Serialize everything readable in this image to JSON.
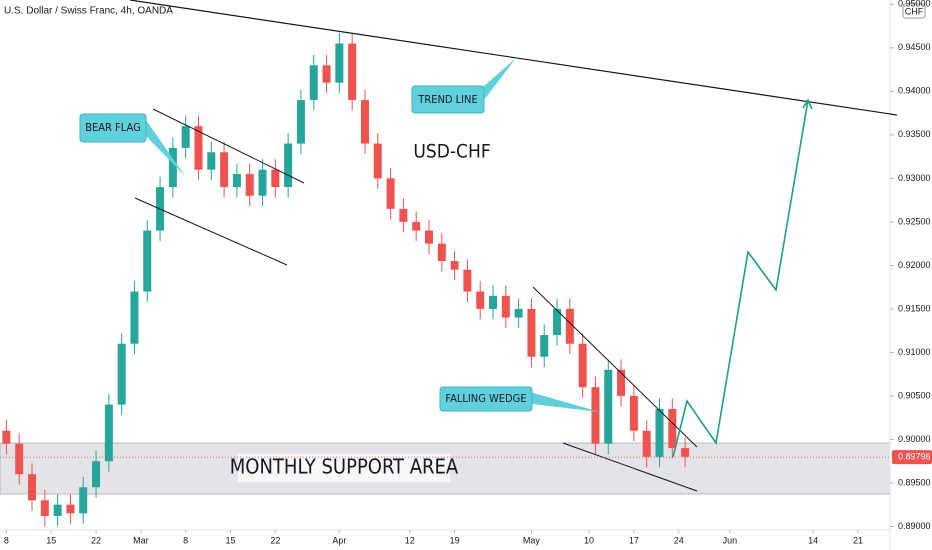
{
  "chart_data": {
    "type": "candlestick",
    "title": "U.S. Dollar / Swiss Franc, 4h, OANDA",
    "currency": "CHF",
    "annotations": [
      "USD-CHF",
      "MONTHLY SUPPORT AREA",
      "BEAR FLAG",
      "TREND LINE",
      "FALLING WEDGE"
    ],
    "colors": {
      "up": "#26a69a",
      "down": "#ef5350"
    },
    "last_price": 0.89796,
    "xlim": [
      -1,
      138
    ],
    "xticks": [
      {
        "value": 0,
        "label": "8"
      },
      {
        "value": 7,
        "label": "15"
      },
      {
        "value": 14,
        "label": "22"
      },
      {
        "value": 21,
        "label": "Mar"
      },
      {
        "value": 28,
        "label": "8"
      },
      {
        "value": 35,
        "label": "15"
      },
      {
        "value": 42,
        "label": "22"
      },
      {
        "value": 52,
        "label": "Apr"
      },
      {
        "value": 63,
        "label": "12"
      },
      {
        "value": 70,
        "label": "19"
      },
      {
        "value": 82,
        "label": "May"
      },
      {
        "value": 91,
        "label": "10"
      },
      {
        "value": 98,
        "label": "17"
      },
      {
        "value": 105,
        "label": "24"
      },
      {
        "value": 113,
        "label": "Jun"
      },
      {
        "value": 126,
        "label": "14"
      },
      {
        "value": 133,
        "label": "21"
      }
    ],
    "ylim": [
      0.8889,
      0.9505
    ],
    "yticks": [
      {
        "value": 0.95,
        "label": "0.95000"
      },
      {
        "value": 0.945,
        "label": "0.94500"
      },
      {
        "value": 0.94,
        "label": "0.94000"
      },
      {
        "value": 0.935,
        "label": "0.93500"
      },
      {
        "value": 0.93,
        "label": "0.93000"
      },
      {
        "value": 0.925,
        "label": "0.92500"
      },
      {
        "value": 0.92,
        "label": "0.92000"
      },
      {
        "value": 0.915,
        "label": "0.91500"
      },
      {
        "value": 0.91,
        "label": "0.91000"
      },
      {
        "value": 0.905,
        "label": "0.90500"
      },
      {
        "value": 0.9,
        "label": "0.90000"
      },
      {
        "value": 0.895,
        "label": "0.89500"
      },
      {
        "value": 0.89,
        "label": "0.89000"
      }
    ],
    "x": [
      0,
      2,
      4,
      6,
      8,
      10,
      12,
      14,
      16,
      18,
      20,
      22,
      24,
      26,
      28,
      30,
      32,
      34,
      36,
      38,
      40,
      42,
      44,
      46,
      48,
      50,
      52,
      54,
      56,
      58,
      60,
      62,
      64,
      66,
      68,
      70,
      72,
      74,
      76,
      78,
      80,
      82,
      84,
      86,
      88,
      90,
      92,
      94,
      96,
      98,
      100,
      102,
      104,
      106
    ],
    "open": [
      0.901,
      0.8995,
      0.896,
      0.893,
      0.8912,
      0.8925,
      0.8915,
      0.8945,
      0.8975,
      0.904,
      0.911,
      0.917,
      0.924,
      0.929,
      0.9335,
      0.936,
      0.931,
      0.933,
      0.929,
      0.9305,
      0.928,
      0.931,
      0.929,
      0.934,
      0.939,
      0.943,
      0.941,
      0.9455,
      0.939,
      0.934,
      0.93,
      0.9265,
      0.925,
      0.924,
      0.9225,
      0.9205,
      0.9195,
      0.917,
      0.915,
      0.9165,
      0.914,
      0.915,
      0.9095,
      0.912,
      0.915,
      0.911,
      0.906,
      0.8995,
      0.908,
      0.905,
      0.901,
      0.898,
      0.9035,
      0.899
    ],
    "high": [
      0.9022,
      0.9007,
      0.8972,
      0.8942,
      0.8937,
      0.8937,
      0.8957,
      0.8987,
      0.9052,
      0.9122,
      0.9182,
      0.9252,
      0.9302,
      0.9347,
      0.9372,
      0.9372,
      0.9342,
      0.9342,
      0.9317,
      0.9317,
      0.9322,
      0.9322,
      0.9352,
      0.9402,
      0.9442,
      0.9442,
      0.9467,
      0.9467,
      0.9402,
      0.9352,
      0.9312,
      0.9277,
      0.9262,
      0.9252,
      0.9237,
      0.9217,
      0.9207,
      0.9182,
      0.9177,
      0.9177,
      0.9162,
      0.9162,
      0.9132,
      0.9162,
      0.9162,
      0.9122,
      0.9072,
      0.9092,
      0.9092,
      0.9062,
      0.9022,
      0.9047,
      0.9047,
      0.9002
    ],
    "low": [
      0.8983,
      0.8948,
      0.8918,
      0.89,
      0.89,
      0.8903,
      0.8903,
      0.8933,
      0.8963,
      0.9028,
      0.9098,
      0.9158,
      0.9228,
      0.9278,
      0.9323,
      0.9298,
      0.9298,
      0.9278,
      0.9278,
      0.9268,
      0.9268,
      0.9278,
      0.9278,
      0.9328,
      0.9378,
      0.9398,
      0.9398,
      0.9378,
      0.9328,
      0.9288,
      0.9253,
      0.9238,
      0.9228,
      0.9213,
      0.9193,
      0.9183,
      0.9158,
      0.9138,
      0.9138,
      0.9128,
      0.9128,
      0.9083,
      0.9083,
      0.9108,
      0.9098,
      0.9048,
      0.8983,
      0.8983,
      0.9038,
      0.8998,
      0.8968,
      0.8968,
      0.8978,
      0.8968
    ],
    "close": [
      0.8995,
      0.896,
      0.893,
      0.8912,
      0.8925,
      0.8915,
      0.8945,
      0.8975,
      0.904,
      0.911,
      0.917,
      0.924,
      0.929,
      0.9335,
      0.936,
      0.931,
      0.933,
      0.929,
      0.9305,
      0.928,
      0.931,
      0.929,
      0.934,
      0.939,
      0.943,
      0.941,
      0.9455,
      0.939,
      0.934,
      0.93,
      0.9265,
      0.925,
      0.924,
      0.9225,
      0.9205,
      0.9195,
      0.917,
      0.915,
      0.9165,
      0.914,
      0.915,
      0.9095,
      0.912,
      0.915,
      0.911,
      0.906,
      0.8995,
      0.908,
      0.905,
      0.901,
      0.898,
      0.9035,
      0.899,
      0.898
    ]
  }
}
